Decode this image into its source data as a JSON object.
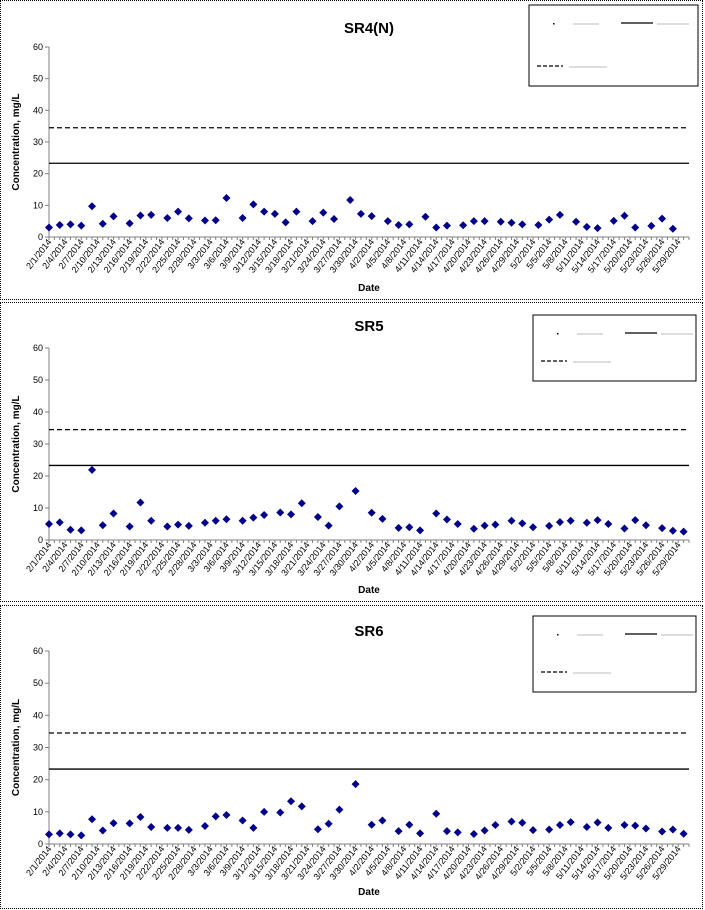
{
  "colors": {
    "marker": "#00008B",
    "axis": "#808080",
    "line": "#000000"
  },
  "chart_data": [
    {
      "type": "scatter",
      "title": "SR4(N)",
      "xlabel": "Date",
      "ylabel": "Concentration, mg/L",
      "ylim": [
        0,
        60
      ],
      "yticks": [
        0,
        10,
        20,
        30,
        40,
        50,
        60
      ],
      "x_range": [
        "2014-02-01",
        "2014-05-31"
      ],
      "x_tick_labels": [
        "2/1/2014",
        "2/4/2014",
        "2/7/2014",
        "2/10/2014",
        "2/13/2014",
        "2/16/2014",
        "2/19/2014",
        "2/22/2014",
        "2/25/2014",
        "2/28/2014",
        "3/3/2014",
        "3/6/2014",
        "3/9/2014",
        "3/12/2014",
        "3/15/2014",
        "3/18/2014",
        "3/21/2014",
        "3/24/2014",
        "3/27/2014",
        "3/30/2014",
        "4/2/2014",
        "4/5/2014",
        "4/8/2014",
        "4/11/2014",
        "4/14/2014",
        "4/17/2014",
        "4/20/2014",
        "4/23/2014",
        "4/26/2014",
        "4/29/2014",
        "5/2/2014",
        "5/5/2014",
        "5/8/2014",
        "5/11/2014",
        "5/14/2014",
        "5/17/2014",
        "5/20/2014",
        "5/23/2014",
        "5/26/2014",
        "5/29/2014"
      ],
      "series": [
        {
          "kind": "points",
          "points": [
            [
              "2014-02-01",
              3.0
            ],
            [
              "2014-02-03",
              3.8
            ],
            [
              "2014-02-05",
              4.0
            ],
            [
              "2014-02-07",
              3.6
            ],
            [
              "2014-02-09",
              9.7
            ],
            [
              "2014-02-11",
              4.2
            ],
            [
              "2014-02-13",
              6.5
            ],
            [
              "2014-02-16",
              4.3
            ],
            [
              "2014-02-18",
              6.8
            ],
            [
              "2014-02-20",
              7.0
            ],
            [
              "2014-02-23",
              6.0
            ],
            [
              "2014-02-25",
              8.0
            ],
            [
              "2014-02-27",
              5.9
            ],
            [
              "2014-03-02",
              5.2
            ],
            [
              "2014-03-04",
              5.3
            ],
            [
              "2014-03-06",
              12.3
            ],
            [
              "2014-03-09",
              6.0
            ],
            [
              "2014-03-11",
              10.3
            ],
            [
              "2014-03-13",
              8.0
            ],
            [
              "2014-03-15",
              7.3
            ],
            [
              "2014-03-17",
              4.6
            ],
            [
              "2014-03-19",
              8.0
            ],
            [
              "2014-03-22",
              5.0
            ],
            [
              "2014-03-24",
              7.7
            ],
            [
              "2014-03-26",
              5.7
            ],
            [
              "2014-03-29",
              11.7
            ],
            [
              "2014-03-31",
              7.3
            ],
            [
              "2014-04-02",
              6.6
            ],
            [
              "2014-04-05",
              5.0
            ],
            [
              "2014-04-07",
              3.8
            ],
            [
              "2014-04-09",
              4.0
            ],
            [
              "2014-04-12",
              6.4
            ],
            [
              "2014-04-14",
              3.0
            ],
            [
              "2014-04-16",
              3.6
            ],
            [
              "2014-04-19",
              3.7
            ],
            [
              "2014-04-21",
              5.0
            ],
            [
              "2014-04-23",
              5.0
            ],
            [
              "2014-04-26",
              4.8
            ],
            [
              "2014-04-28",
              4.5
            ],
            [
              "2014-04-30",
              4.0
            ],
            [
              "2014-05-03",
              3.8
            ],
            [
              "2014-05-05",
              5.5
            ],
            [
              "2014-05-07",
              7.0
            ],
            [
              "2014-05-10",
              4.8
            ],
            [
              "2014-05-12",
              3.2
            ],
            [
              "2014-05-14",
              2.8
            ],
            [
              "2014-05-17",
              5.1
            ],
            [
              "2014-05-19",
              6.7
            ],
            [
              "2014-05-21",
              3.0
            ],
            [
              "2014-05-24",
              3.5
            ],
            [
              "2014-05-26",
              5.8
            ],
            [
              "2014-05-28",
              2.6
            ]
          ]
        },
        {
          "kind": "hline",
          "style": "solid",
          "value": 23.3
        },
        {
          "kind": "hline",
          "style": "dashed",
          "value": 34.5
        }
      ]
    },
    {
      "type": "scatter",
      "title": "SR5",
      "xlabel": "Date",
      "ylabel": "Concentration, mg/L",
      "ylim": [
        0,
        60
      ],
      "yticks": [
        0,
        10,
        20,
        30,
        40,
        50,
        60
      ],
      "x_range": [
        "2014-02-01",
        "2014-05-31"
      ],
      "x_tick_labels": [
        "2/1/2014",
        "2/4/2014",
        "2/7/2014",
        "2/10/2014",
        "2/13/2014",
        "2/16/2014",
        "2/19/2014",
        "2/22/2014",
        "2/25/2014",
        "2/28/2014",
        "3/3/2014",
        "3/6/2014",
        "3/9/2014",
        "3/12/2014",
        "3/15/2014",
        "3/18/2014",
        "3/21/2014",
        "3/24/2014",
        "3/27/2014",
        "3/30/2014",
        "4/2/2014",
        "4/5/2014",
        "4/8/2014",
        "4/11/2014",
        "4/14/2014",
        "4/17/2014",
        "4/20/2014",
        "4/23/2014",
        "4/26/2014",
        "4/29/2014",
        "5/2/2014",
        "5/5/2014",
        "5/8/2014",
        "5/11/2014",
        "5/14/2014",
        "5/17/2014",
        "5/20/2014",
        "5/23/2014",
        "5/26/2014",
        "5/29/2014"
      ],
      "series": [
        {
          "kind": "points",
          "points": [
            [
              "2014-02-01",
              5.0
            ],
            [
              "2014-02-03",
              5.5
            ],
            [
              "2014-02-05",
              3.2
            ],
            [
              "2014-02-07",
              3.0
            ],
            [
              "2014-02-09",
              21.9
            ],
            [
              "2014-02-11",
              4.6
            ],
            [
              "2014-02-13",
              8.3
            ],
            [
              "2014-02-16",
              4.2
            ],
            [
              "2014-02-18",
              11.7
            ],
            [
              "2014-02-20",
              6.0
            ],
            [
              "2014-02-23",
              4.2
            ],
            [
              "2014-02-25",
              4.8
            ],
            [
              "2014-02-27",
              4.4
            ],
            [
              "2014-03-02",
              5.4
            ],
            [
              "2014-03-04",
              6.0
            ],
            [
              "2014-03-06",
              6.5
            ],
            [
              "2014-03-09",
              6.0
            ],
            [
              "2014-03-11",
              7.0
            ],
            [
              "2014-03-13",
              7.8
            ],
            [
              "2014-03-16",
              8.6
            ],
            [
              "2014-03-18",
              8.0
            ],
            [
              "2014-03-20",
              11.5
            ],
            [
              "2014-03-23",
              7.2
            ],
            [
              "2014-03-25",
              4.5
            ],
            [
              "2014-03-27",
              10.5
            ],
            [
              "2014-03-30",
              15.3
            ],
            [
              "2014-04-02",
              8.5
            ],
            [
              "2014-04-04",
              6.6
            ],
            [
              "2014-04-07",
              3.8
            ],
            [
              "2014-04-09",
              4.0
            ],
            [
              "2014-04-11",
              3.0
            ],
            [
              "2014-04-14",
              8.3
            ],
            [
              "2014-04-16",
              6.4
            ],
            [
              "2014-04-18",
              5.0
            ],
            [
              "2014-04-21",
              3.5
            ],
            [
              "2014-04-23",
              4.5
            ],
            [
              "2014-04-25",
              4.8
            ],
            [
              "2014-04-28",
              6.0
            ],
            [
              "2014-04-30",
              5.2
            ],
            [
              "2014-05-02",
              4.0
            ],
            [
              "2014-05-05",
              4.4
            ],
            [
              "2014-05-07",
              5.6
            ],
            [
              "2014-05-09",
              6.0
            ],
            [
              "2014-05-12",
              5.4
            ],
            [
              "2014-05-14",
              6.2
            ],
            [
              "2014-05-16",
              5.0
            ],
            [
              "2014-05-19",
              3.6
            ],
            [
              "2014-05-21",
              6.2
            ],
            [
              "2014-05-23",
              4.6
            ],
            [
              "2014-05-26",
              3.7
            ],
            [
              "2014-05-28",
              2.9
            ],
            [
              "2014-05-30",
              2.6
            ]
          ]
        },
        {
          "kind": "hline",
          "style": "solid",
          "value": 23.3
        },
        {
          "kind": "hline",
          "style": "dashed",
          "value": 34.5
        }
      ]
    },
    {
      "type": "scatter",
      "title": "SR6",
      "xlabel": "Date",
      "ylabel": "Concentration, mg/L",
      "ylim": [
        0,
        60
      ],
      "yticks": [
        0,
        10,
        20,
        30,
        40,
        50,
        60
      ],
      "x_range": [
        "2014-02-01",
        "2014-05-31"
      ],
      "x_tick_labels": [
        "2/1/2014",
        "2/4/2014",
        "2/7/2014",
        "2/10/2014",
        "2/13/2014",
        "2/16/2014",
        "2/19/2014",
        "2/22/2014",
        "2/25/2014",
        "2/28/2014",
        "3/3/2014",
        "3/6/2014",
        "3/9/2014",
        "3/12/2014",
        "3/15/2014",
        "3/18/2014",
        "3/21/2014",
        "3/24/2014",
        "3/27/2014",
        "3/30/2014",
        "4/2/2014",
        "4/5/2014",
        "4/8/2014",
        "4/11/2014",
        "4/14/2014",
        "4/17/2014",
        "4/20/2014",
        "4/23/2014",
        "4/26/2014",
        "4/29/2014",
        "5/2/2014",
        "5/5/2014",
        "5/8/2014",
        "5/11/2014",
        "5/14/2014",
        "5/17/2014",
        "5/20/2014",
        "5/23/2014",
        "5/26/2014",
        "5/29/2014"
      ],
      "series": [
        {
          "kind": "points",
          "points": [
            [
              "2014-02-01",
              3.0
            ],
            [
              "2014-02-03",
              3.3
            ],
            [
              "2014-02-05",
              3.0
            ],
            [
              "2014-02-07",
              2.7
            ],
            [
              "2014-02-09",
              7.7
            ],
            [
              "2014-02-11",
              4.2
            ],
            [
              "2014-02-13",
              6.5
            ],
            [
              "2014-02-16",
              6.4
            ],
            [
              "2014-02-18",
              8.4
            ],
            [
              "2014-02-20",
              5.3
            ],
            [
              "2014-02-23",
              5.0
            ],
            [
              "2014-02-25",
              5.0
            ],
            [
              "2014-02-27",
              4.4
            ],
            [
              "2014-03-02",
              5.6
            ],
            [
              "2014-03-04",
              8.6
            ],
            [
              "2014-03-06",
              9.0
            ],
            [
              "2014-03-09",
              7.3
            ],
            [
              "2014-03-11",
              5.0
            ],
            [
              "2014-03-13",
              10.0
            ],
            [
              "2014-03-16",
              9.8
            ],
            [
              "2014-03-18",
              13.3
            ],
            [
              "2014-03-20",
              11.7
            ],
            [
              "2014-03-23",
              4.6
            ],
            [
              "2014-03-25",
              6.3
            ],
            [
              "2014-03-27",
              10.7
            ],
            [
              "2014-03-30",
              18.6
            ],
            [
              "2014-04-02",
              6.0
            ],
            [
              "2014-04-04",
              7.3
            ],
            [
              "2014-04-07",
              4.0
            ],
            [
              "2014-04-09",
              6.0
            ],
            [
              "2014-04-11",
              3.3
            ],
            [
              "2014-04-14",
              9.4
            ],
            [
              "2014-04-16",
              4.0
            ],
            [
              "2014-04-18",
              3.6
            ],
            [
              "2014-04-21",
              3.1
            ],
            [
              "2014-04-23",
              4.2
            ],
            [
              "2014-04-25",
              5.9
            ],
            [
              "2014-04-28",
              7.0
            ],
            [
              "2014-04-30",
              6.6
            ],
            [
              "2014-05-02",
              4.3
            ],
            [
              "2014-05-05",
              4.5
            ],
            [
              "2014-05-07",
              5.9
            ],
            [
              "2014-05-09",
              6.8
            ],
            [
              "2014-05-12",
              5.3
            ],
            [
              "2014-05-14",
              6.7
            ],
            [
              "2014-05-16",
              5.0
            ],
            [
              "2014-05-19",
              5.9
            ],
            [
              "2014-05-21",
              5.7
            ],
            [
              "2014-05-23",
              4.8
            ],
            [
              "2014-05-26",
              3.9
            ],
            [
              "2014-05-28",
              4.5
            ],
            [
              "2014-05-30",
              3.2
            ]
          ]
        },
        {
          "kind": "hline",
          "style": "solid",
          "value": 23.3
        },
        {
          "kind": "hline",
          "style": "dashed",
          "value": 34.5
        }
      ]
    }
  ]
}
